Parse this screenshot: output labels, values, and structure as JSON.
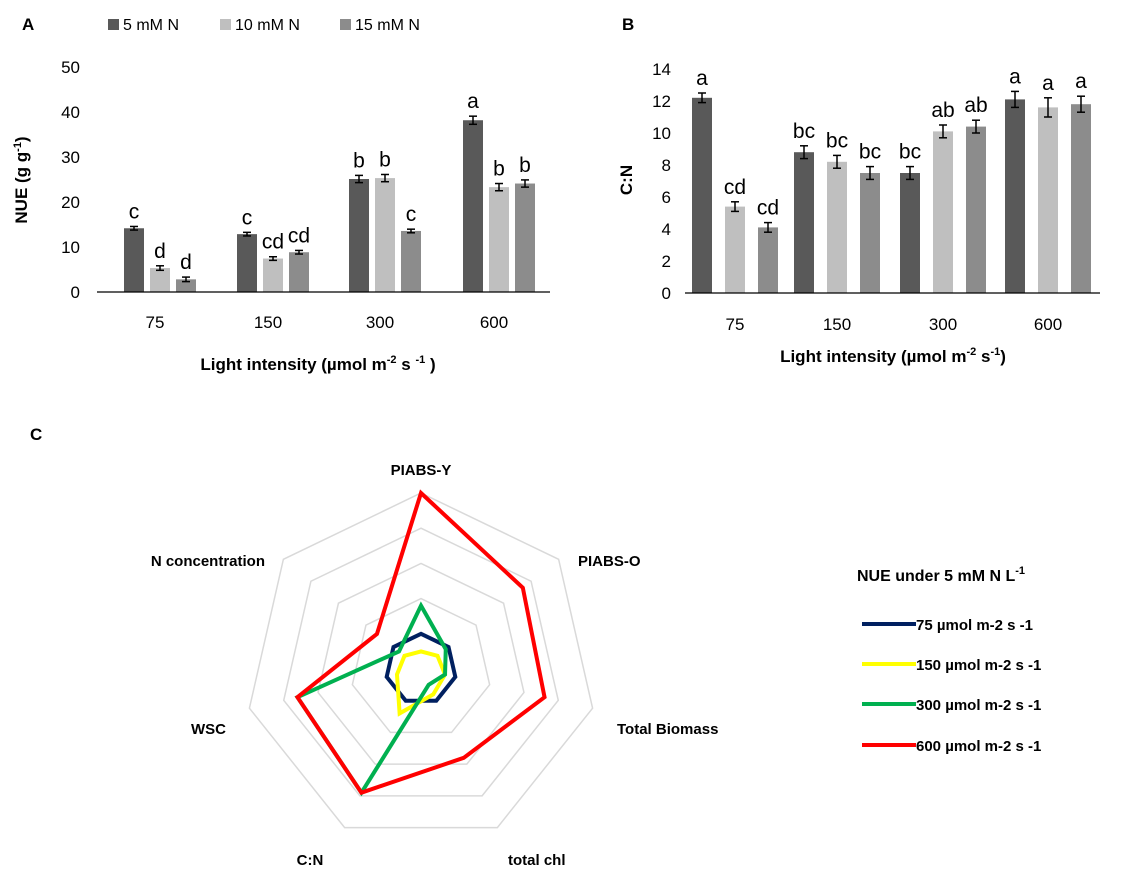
{
  "chart_data": [
    {
      "panel": "A",
      "type": "bar",
      "categories": [
        "75",
        "150",
        "300",
        "600"
      ],
      "series": [
        {
          "name": "5 mM N",
          "color": "#595959",
          "values": [
            14.1,
            12.8,
            25.0,
            38.0
          ],
          "errors": [
            0.4,
            0.4,
            0.8,
            0.9
          ],
          "letters": [
            "c",
            "c",
            "b",
            "a"
          ]
        },
        {
          "name": "10 mM N",
          "color": "#BFBFBF",
          "values": [
            5.3,
            7.4,
            25.2,
            23.2
          ],
          "errors": [
            0.5,
            0.4,
            0.8,
            0.8
          ],
          "letters": [
            "d",
            "cd",
            "b",
            "b"
          ]
        },
        {
          "name": "15 mM N",
          "color": "#8C8C8C",
          "values": [
            2.8,
            8.8,
            13.5,
            24.0
          ],
          "errors": [
            0.5,
            0.4,
            0.4,
            0.8
          ],
          "letters": [
            "d",
            "cd",
            "c",
            "b"
          ]
        }
      ],
      "ylim": [
        0,
        50
      ],
      "yticks": [
        "0",
        "10",
        "20",
        "30",
        "40",
        "50"
      ],
      "ylabel": {
        "main": "NUE (g g",
        "sup": "-1",
        "tail": ")"
      },
      "xlabel": {
        "main": "Light intensity (µmol m",
        "sup1": "-2",
        "mid": " s ",
        "sup2": "-1",
        "tail": " )"
      },
      "legend_position": "top"
    },
    {
      "panel": "B",
      "type": "bar",
      "categories": [
        "75",
        "150",
        "300",
        "600"
      ],
      "series": [
        {
          "name": "5 mM N",
          "color": "#595959",
          "values": [
            12.2,
            8.8,
            7.5,
            12.1
          ],
          "errors": [
            0.3,
            0.4,
            0.4,
            0.5
          ],
          "letters": [
            "a",
            "bc",
            "bc",
            "a"
          ]
        },
        {
          "name": "10 mM N",
          "color": "#BFBFBF",
          "values": [
            5.4,
            8.2,
            10.1,
            11.6
          ],
          "errors": [
            0.3,
            0.4,
            0.4,
            0.6
          ],
          "letters": [
            "cd",
            "bc",
            "ab",
            "a"
          ]
        },
        {
          "name": "15 mM N",
          "color": "#8C8C8C",
          "values": [
            4.1,
            7.5,
            10.4,
            11.8
          ],
          "errors": [
            0.3,
            0.4,
            0.4,
            0.5
          ],
          "letters": [
            "cd",
            "bc",
            "ab",
            "a"
          ]
        }
      ],
      "ylim": [
        0,
        14
      ],
      "yticks": [
        "0",
        "2",
        "4",
        "6",
        "8",
        "10",
        "12",
        "14"
      ],
      "ylabel": {
        "main": "C:N"
      },
      "xlabel": {
        "main": "Light intensity (µmol m",
        "sup1": "-2",
        "mid": " s",
        "sup2": "-1",
        "tail": ")"
      }
    },
    {
      "panel": "C",
      "type": "radar",
      "axes": [
        "PIABS-Y",
        "PIABS-O",
        "Total Biomass",
        "total chl",
        "C:N",
        "WSC",
        "N concentration"
      ],
      "rings": 5,
      "rmax": 5,
      "legend_title": {
        "main": "NUE under 5 mM N L",
        "sup": "-1"
      },
      "legend_position": "right",
      "series": [
        {
          "name": "75 µmol m-2 s -1",
          "color": "#002060",
          "values": [
            1.0,
            1.0,
            1.0,
            1.0,
            1.0,
            1.0,
            1.0
          ]
        },
        {
          "name": "150 µmol m-2 s -1",
          "color": "#FFFF00",
          "values": [
            0.5,
            0.6,
            0.7,
            0.8,
            1.4,
            0.7,
            0.6
          ]
        },
        {
          "name": "300 µmol m-2 s -1",
          "color": "#00B050",
          "values": [
            1.8,
            0.9,
            0.7,
            0.5,
            3.9,
            3.6,
            0.8
          ]
        },
        {
          "name": "600 µmol m-2 s -1",
          "color": "#FF0000",
          "values": [
            5.0,
            3.7,
            3.6,
            2.8,
            3.9,
            3.6,
            1.6
          ]
        }
      ]
    }
  ]
}
